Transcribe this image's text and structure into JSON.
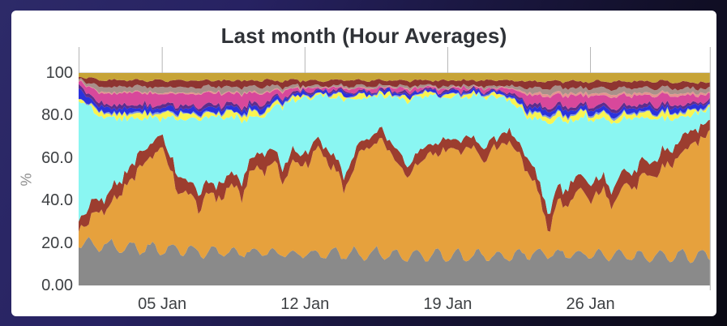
{
  "colors": {
    "background_top": "#2d2a68",
    "background_bottom": "#0a0913",
    "card": "#ffffff",
    "title_text": "#2f3237",
    "tick_text": "#3d4043",
    "y_axis_title_text": "#8c8c8c",
    "grid_line": "#b5b5b5",
    "plot_border": "#c4c4c4"
  },
  "chart": {
    "title": "Last month (Hour Averages)",
    "y_axis": {
      "label": "%",
      "ticks": [
        {
          "value": 100,
          "label": "100"
        },
        {
          "value": 80,
          "label": "80.0"
        },
        {
          "value": 60,
          "label": "60.0"
        },
        {
          "value": 40,
          "label": "40.0"
        },
        {
          "value": 20,
          "label": "20.0"
        },
        {
          "value": 0,
          "label": "0.00"
        }
      ]
    },
    "x_axis": {
      "ticks": [
        {
          "day": 4.1,
          "label": "05 Jan"
        },
        {
          "day": 11.1,
          "label": "12 Jan"
        },
        {
          "day": 18.1,
          "label": "19 Jan"
        },
        {
          "day": 25.1,
          "label": "26 Jan"
        }
      ]
    }
  },
  "chart_data": {
    "type": "area",
    "stacked": true,
    "normalized_to_100_percent": true,
    "title": "Last month (Hour Averages)",
    "xlabel": "",
    "ylabel": "%",
    "ylim": [
      0,
      100
    ],
    "x_unit": "day index (0 = left edge ~01 Jan, 31 = right edge)",
    "x": [
      0,
      1,
      2,
      3,
      4,
      5,
      6,
      7,
      8,
      9,
      10,
      11,
      12,
      13,
      14,
      15,
      16,
      17,
      18,
      19,
      20,
      21,
      22,
      23,
      24,
      25,
      26,
      27,
      28,
      29,
      30,
      31
    ],
    "x_tick_labels": [
      "05 Jan",
      "12 Jan",
      "19 Jan",
      "26 Jan"
    ],
    "x_tick_days": [
      4.1,
      11.1,
      18.1,
      25.1
    ],
    "grid": "vertical date gridlines, visible above stack",
    "legend": "none visible",
    "series_order": "bottom to top",
    "series": [
      {
        "name": "gray",
        "color": "#8a8a8a",
        "jitter": 0.6,
        "daily_wave": 3,
        "values": [
          20,
          19,
          18,
          18,
          17,
          17,
          16,
          16,
          16,
          16,
          15,
          15,
          15,
          15,
          15,
          15,
          14,
          14,
          14,
          14,
          14,
          14,
          15,
          15,
          15,
          15,
          14,
          14,
          14,
          14,
          14,
          14
        ]
      },
      {
        "name": "orange",
        "color": "#e6a13d",
        "jitter": 8,
        "daily_wave": 0,
        "values": [
          7,
          15,
          24,
          37,
          49,
          26,
          23,
          28,
          30,
          42,
          37,
          44,
          48,
          31,
          50,
          52,
          38,
          47,
          51,
          51,
          47,
          55,
          41,
          15,
          25,
          28,
          27,
          33,
          37,
          44,
          51,
          58
        ]
      },
      {
        "name": "maroon",
        "color": "#9c3d2f",
        "jitter": 1.8,
        "daily_wave": 0,
        "values": [
          6,
          6,
          6,
          7,
          6,
          7,
          6,
          6,
          6,
          7,
          6,
          5,
          5,
          6,
          5,
          5,
          6,
          5,
          5,
          5,
          5,
          5,
          6,
          7,
          8,
          7,
          7,
          7,
          7,
          7,
          7,
          5
        ]
      },
      {
        "name": "cyan",
        "color": "#8af6f2",
        "jitter": 3,
        "daily_wave": 0,
        "values": [
          54,
          39.5,
          31,
          17,
          7.5,
          28.5,
          34,
          29.5,
          26.5,
          14.5,
          26.7,
          24.9,
          21.1,
          35.5,
          19.1,
          17.1,
          29.5,
          23.1,
          19.1,
          19.1,
          23.1,
          15.1,
          17.8,
          40.1,
          29.1,
          28.9,
          29.1,
          24.9,
          20.4,
          13.9,
          7.8,
          7
        ]
      },
      {
        "name": "yellow",
        "color": "#f9f451",
        "jitter": 2,
        "daily_wave": 0,
        "values": [
          1,
          2,
          2,
          2,
          2,
          2.5,
          2,
          2,
          2.5,
          2,
          1.5,
          1,
          1,
          1.5,
          1,
          1,
          1.5,
          1,
          1,
          1,
          1,
          1,
          2,
          2.5,
          2.5,
          2,
          2.5,
          2,
          2.5,
          2,
          2,
          1
        ]
      },
      {
        "name": "periwinkle",
        "color": "#7e96e0",
        "jitter": 0.4,
        "daily_wave": 0,
        "values": [
          0.3,
          0.5,
          0.5,
          0.5,
          0.5,
          0.5,
          0.5,
          0.5,
          0.5,
          0.5,
          0.4,
          0.3,
          0.3,
          0.3,
          0.3,
          0.3,
          0.3,
          0.3,
          0.3,
          0.3,
          0.3,
          0.3,
          0.6,
          0.7,
          0.7,
          0.6,
          0.7,
          0.6,
          0.6,
          0.6,
          0.5,
          0.4
        ]
      },
      {
        "name": "blue",
        "color": "#2b32db",
        "jitter": 1,
        "daily_wave": 0,
        "values": [
          4,
          2,
          2,
          2,
          2,
          2,
          2,
          2,
          2,
          2,
          1.5,
          1,
          1,
          1.2,
          1,
          1,
          1.2,
          1,
          1,
          1,
          1,
          1,
          2,
          2.2,
          2.2,
          2,
          2.2,
          2,
          2,
          2,
          1.8,
          1.5
        ]
      },
      {
        "name": "purple",
        "color": "#5e2d8c",
        "jitter": 0.7,
        "daily_wave": 0,
        "values": [
          2,
          1.5,
          1.5,
          1.5,
          1.5,
          1.5,
          1.5,
          1.5,
          1.5,
          1.5,
          1,
          0.6,
          0.6,
          0.8,
          0.6,
          0.6,
          0.8,
          0.6,
          0.6,
          0.6,
          0.6,
          0.6,
          1.4,
          1.6,
          1.6,
          1.5,
          1.6,
          1.5,
          1.5,
          1.5,
          1.2,
          1
        ]
      },
      {
        "name": "magenta",
        "color": "#d8489b",
        "jitter": 1.6,
        "daily_wave": 0,
        "values": [
          2,
          5,
          5.5,
          5.5,
          5,
          5.5,
          5.5,
          5,
          5.5,
          5,
          3,
          1.2,
          1,
          1.5,
          1,
          1,
          1.5,
          1,
          1,
          1,
          1,
          1,
          4,
          5,
          5,
          4.5,
          5,
          4.5,
          4.5,
          4.5,
          4,
          2.5
        ]
      },
      {
        "name": "salmon",
        "color": "#e5938f",
        "jitter": 0.4,
        "daily_wave": 0,
        "values": [
          0.2,
          0.5,
          0.5,
          0.5,
          0.5,
          0.5,
          0.5,
          0.5,
          0.5,
          0.5,
          0.4,
          0.2,
          0.2,
          0.2,
          0.2,
          0.2,
          0.2,
          0.2,
          0.2,
          0.2,
          0.2,
          0.2,
          1,
          1.2,
          1.2,
          1.1,
          1.2,
          1.1,
          1.1,
          1.1,
          1,
          0.8
        ]
      },
      {
        "name": "mauve",
        "color": "#a9908a",
        "jitter": 0.8,
        "daily_wave": 0,
        "values": [
          0.5,
          2.5,
          2.5,
          2.5,
          2.5,
          2.5,
          2.5,
          2.5,
          2.5,
          2.5,
          1.5,
          0.8,
          0.8,
          1,
          0.8,
          0.8,
          1,
          0.8,
          0.8,
          0.8,
          0.8,
          0.8,
          2.2,
          2.5,
          2.5,
          2.4,
          2.5,
          2.4,
          2.4,
          2.4,
          2.2,
          1.8
        ]
      },
      {
        "name": "dark-red",
        "color": "#8e3431",
        "jitter": 1,
        "daily_wave": 0,
        "values": [
          1,
          3,
          3,
          3,
          3,
          3,
          3,
          3,
          3,
          3,
          2.5,
          2.5,
          2.5,
          2.5,
          2.5,
          2.5,
          2.5,
          2.5,
          2.5,
          2.5,
          2.5,
          2.5,
          3,
          3.2,
          3.2,
          3,
          3.2,
          3,
          3,
          3,
          3,
          2.5
        ]
      },
      {
        "name": "gold",
        "color": "#c7a437",
        "jitter": 0.9,
        "daily_wave": 0,
        "values": [
          1.5,
          3.5,
          3.5,
          3.5,
          3.5,
          3.5,
          3.5,
          3.5,
          3.5,
          3.5,
          3.5,
          3.5,
          3.5,
          3.5,
          3.5,
          3.5,
          3.5,
          3.5,
          3.5,
          3.5,
          3.5,
          3.5,
          4,
          4,
          4,
          4,
          4,
          4,
          4,
          4,
          4.5,
          4.5
        ]
      }
    ]
  }
}
